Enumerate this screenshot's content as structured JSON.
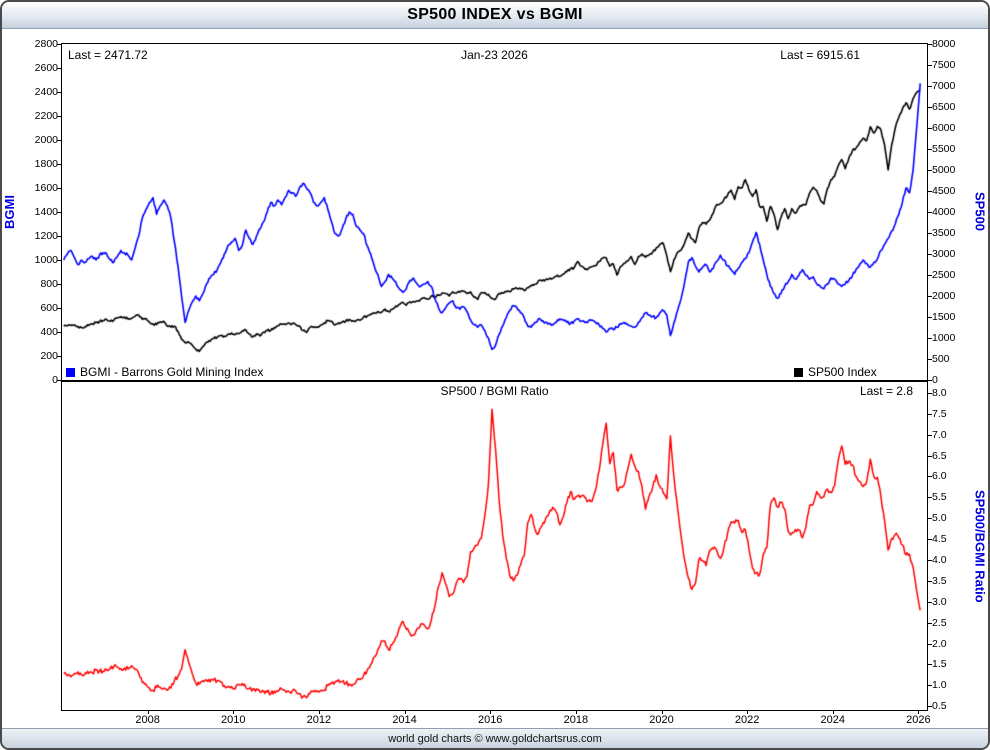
{
  "window": {
    "title": "SP500 INDEX vs BGMI",
    "footer": "world gold charts © www.goldchartsrus.com"
  },
  "top_chart": {
    "bgmi_last": "Last = 2471.72",
    "date": "Jan-23  2026",
    "sp500_last": "Last = 6915.61",
    "left_axis_title": "BGMI",
    "right_axis_title": "SP500",
    "legend_bgmi": "BGMI - Barrons Gold Mining Index",
    "legend_sp500": "SP500 Index"
  },
  "bottom_chart": {
    "title": "SP500 / BGMI Ratio",
    "last": "Last = 2.8",
    "right_axis_title": "SP500/BGMI Ratio"
  },
  "colors": {
    "bgmi": "#0000ff",
    "sp500": "#000000",
    "ratio": "#ff0000",
    "axis_title": "#0000dd"
  },
  "chart_data": [
    {
      "type": "line",
      "title": "SP500 INDEX vs BGMI",
      "x_axis": {
        "unit": "decimal-year-monthly",
        "start": 2006.042,
        "step": 0.083333,
        "xlim": [
          2006.0,
          2026.2
        ],
        "tick_labels": [
          "2008",
          "2010",
          "2012",
          "2014",
          "2016",
          "2018",
          "2020",
          "2022",
          "2024",
          "2026"
        ]
      },
      "annotations": [
        "Last = 2471.72",
        "Jan-23  2026",
        "Last = 6915.61"
      ],
      "series": [
        {
          "name": "BGMI - Barrons Gold Mining Index",
          "color": "#0000ff",
          "yaxis": "left",
          "ylim": [
            0,
            2800
          ],
          "ytick_step": 200,
          "last": 2471.72,
          "values": [
            1000,
            1050,
            1080,
            1020,
            960,
            1000,
            980,
            1010,
            1030,
            1000,
            1040,
            1060,
            1050,
            1000,
            980,
            1030,
            1080,
            1060,
            1040,
            1000,
            1100,
            1200,
            1350,
            1420,
            1480,
            1520,
            1380,
            1450,
            1500,
            1450,
            1350,
            1150,
            950,
            700,
            480,
            580,
            650,
            700,
            660,
            720,
            800,
            850,
            880,
            920,
            980,
            1050,
            1120,
            1150,
            1180,
            1080,
            1120,
            1250,
            1180,
            1130,
            1200,
            1260,
            1320,
            1400,
            1480,
            1450,
            1500,
            1460,
            1520,
            1580,
            1560,
            1530,
            1600,
            1640,
            1600,
            1560,
            1480,
            1450,
            1480,
            1520,
            1420,
            1320,
            1220,
            1200,
            1260,
            1340,
            1400,
            1380,
            1280,
            1250,
            1220,
            1120,
            1050,
            950,
            880,
            780,
            820,
            880,
            850,
            820,
            760,
            730,
            760,
            830,
            850,
            800,
            780,
            800,
            820,
            780,
            680,
            600,
            560,
            600,
            640,
            660,
            600,
            590,
            610,
            570,
            500,
            460,
            440,
            460,
            410,
            350,
            255,
            290,
            380,
            450,
            520,
            580,
            620,
            600,
            560,
            520,
            450,
            440,
            480,
            510,
            490,
            480,
            470,
            460,
            480,
            510,
            500,
            480,
            470,
            490,
            510,
            490,
            480,
            490,
            500,
            480,
            460,
            430,
            400,
            430,
            420,
            440,
            470,
            480,
            460,
            450,
            440,
            480,
            520,
            560,
            540,
            530,
            520,
            560,
            580,
            540,
            370,
            480,
            580,
            680,
            820,
            980,
            1020,
            950,
            900,
            940,
            960,
            900,
            930,
            990,
            1040,
            1000,
            950,
            920,
            880,
            930,
            980,
            1010,
            1060,
            1150,
            1230,
            1130,
            1000,
            880,
            780,
            720,
            680,
            720,
            780,
            820,
            880,
            840,
            870,
            920,
            870,
            840,
            860,
            800,
            780,
            760,
            800,
            850,
            840,
            800,
            780,
            800,
            830,
            870,
            920,
            960,
            1000,
            970,
            940,
            980,
            1010,
            1080,
            1130,
            1180,
            1240,
            1300,
            1380,
            1480,
            1600,
            1560,
            1750,
            2100,
            2471.72
          ]
        },
        {
          "name": "SP500 Index",
          "color": "#000000",
          "yaxis": "right",
          "ylim": [
            0,
            8000
          ],
          "ytick_step": 500,
          "last": 6915.61,
          "values": [
            1280,
            1290,
            1300,
            1310,
            1270,
            1250,
            1270,
            1300,
            1335,
            1365,
            1390,
            1418,
            1440,
            1400,
            1420,
            1480,
            1510,
            1500,
            1450,
            1470,
            1520,
            1545,
            1445,
            1468,
            1380,
            1330,
            1320,
            1380,
            1400,
            1280,
            1260,
            1280,
            1160,
            970,
            890,
            900,
            830,
            735,
            680,
            800,
            900,
            920,
            990,
            1020,
            1060,
            1040,
            1090,
            1115,
            1080,
            1100,
            1170,
            1190,
            1090,
            1030,
            1100,
            1050,
            1140,
            1180,
            1180,
            1250,
            1290,
            1330,
            1330,
            1360,
            1340,
            1320,
            1290,
            1180,
            1130,
            1250,
            1250,
            1260,
            1310,
            1360,
            1410,
            1400,
            1310,
            1360,
            1380,
            1400,
            1440,
            1410,
            1420,
            1420,
            1500,
            1520,
            1570,
            1600,
            1630,
            1610,
            1690,
            1630,
            1680,
            1760,
            1800,
            1850,
            1780,
            1860,
            1870,
            1880,
            1920,
            1960,
            1930,
            2000,
            1970,
            2020,
            2070,
            2060,
            2000,
            2100,
            2070,
            2090,
            2110,
            2060,
            2100,
            1970,
            1920,
            2080,
            2080,
            2040,
            1940,
            1930,
            2060,
            2065,
            2100,
            2100,
            2170,
            2180,
            2170,
            2130,
            2200,
            2240,
            2280,
            2360,
            2360,
            2390,
            2410,
            2420,
            2470,
            2470,
            2520,
            2580,
            2650,
            2670,
            2820,
            2710,
            2640,
            2650,
            2700,
            2720,
            2820,
            2900,
            2910,
            2710,
            2760,
            2500,
            2700,
            2780,
            2830,
            2940,
            2750,
            2940,
            3000,
            2920,
            2980,
            3040,
            3140,
            3230,
            3250,
            2950,
            2580,
            2870,
            3040,
            3100,
            3270,
            3500,
            3360,
            3270,
            3620,
            3750,
            3710,
            3810,
            3970,
            4180,
            4200,
            4300,
            4400,
            4520,
            4300,
            4600,
            4570,
            4770,
            4520,
            4370,
            4530,
            4130,
            4130,
            3780,
            4130,
            3950,
            3580,
            3870,
            4080,
            3840,
            4080,
            3970,
            4100,
            4170,
            4180,
            4450,
            4590,
            4510,
            4290,
            4190,
            4560,
            4770,
            4850,
            5100,
            5250,
            5030,
            5280,
            5460,
            5520,
            5650,
            5760,
            5700,
            6030,
            5880,
            6040,
            5950,
            5600,
            5000,
            5600,
            6000,
            6250,
            6450,
            6600,
            6450,
            6700,
            6850,
            6915.61
          ]
        }
      ]
    },
    {
      "type": "line",
      "title": "SP500 / BGMI Ratio",
      "annotations": [
        "Last = 2.8"
      ],
      "series": [
        {
          "name": "SP500/BGMI Ratio",
          "color": "#ff0000",
          "yaxis": "right",
          "ylim": [
            0.5,
            8.0
          ],
          "ytick_step": 0.5,
          "last": 2.8,
          "derived": "sp500.values[i] / bgmi.values[i] on the shared monthly x grid"
        }
      ]
    }
  ]
}
